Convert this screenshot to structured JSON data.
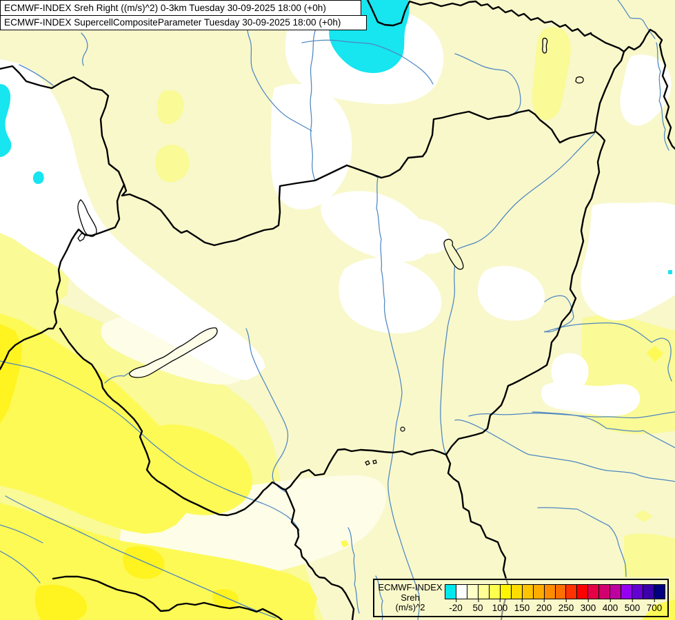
{
  "titles": {
    "line1": "ECMWF-INDEX Sreh Right ((m/s)^2) 0-3km Tuesday 30-09-2025 18:00 (+0h)",
    "line2": "ECMWF-INDEX SupercellCompositeParameter Tuesday 30-09-2025 18:00 (+0h)"
  },
  "legend": {
    "model": "ECMWF-INDEX",
    "parameter": "Sreh",
    "units": "(m/s)^2",
    "ticks": [
      "-20",
      "50",
      "100",
      "150",
      "200",
      "250",
      "300",
      "400",
      "500",
      "700"
    ],
    "colors": [
      "#00E7EE",
      "#FFFFFF",
      "#FFFFC8",
      "#FFFF96",
      "#FFFF4E",
      "#FFF500",
      "#FFDC00",
      "#FFC400",
      "#FFAC00",
      "#FF8C00",
      "#FF6E00",
      "#FF3200",
      "#FF0000",
      "#E60046",
      "#D2006E",
      "#BE00A0",
      "#9600F0",
      "#6400D2",
      "#3C00AA",
      "#000080"
    ]
  },
  "colors": {
    "base": "#F8F8CB",
    "medium": "#FAFA96",
    "bright": "#FDFA55",
    "brightest": "#FFF320",
    "cream": "#FDFDE8",
    "white": "#FFFFFF",
    "cyan": "#17E5EF",
    "river": "#4E86C0",
    "border": "#000000",
    "gray_line": "#8C8C8C",
    "box_bg": "#FFFFFF",
    "text": "#000000"
  }
}
